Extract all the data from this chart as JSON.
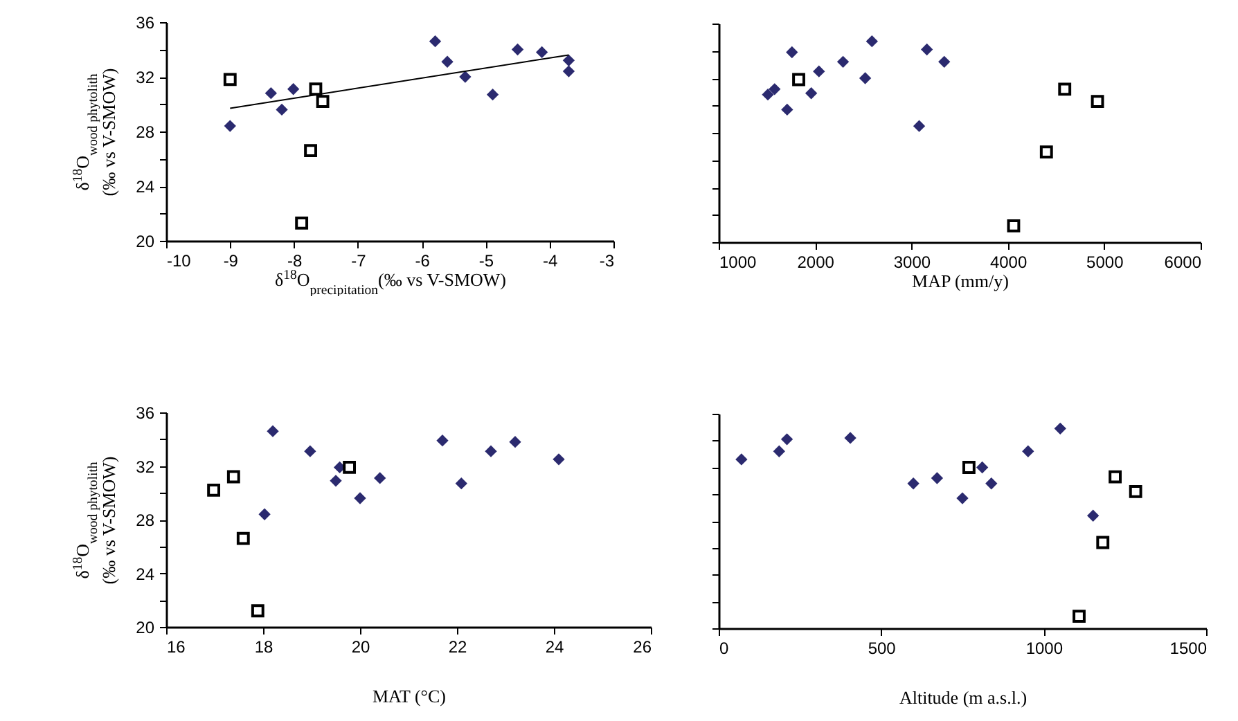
{
  "chart_data": [
    {
      "type": "scatter",
      "xlabel": "δ$^{18}$O$_{precipitation}$(‰ vs V-SMOW)",
      "ylabel": "δ$^{18}$O$_{wood phytolith}$\n(‰ vs V-SMOW)",
      "xlim": [
        -10,
        -3
      ],
      "xticks": [
        -10,
        -9,
        -8,
        -7,
        -6,
        -5,
        -4,
        -3
      ],
      "ylim": [
        20,
        36
      ],
      "yticks": [
        20,
        {
          "value": 22,
          "label": null
        },
        24,
        {
          "value": 26,
          "label": null
        },
        28,
        {
          "value": 30,
          "label": null
        },
        32,
        {
          "value": 34,
          "label": null
        },
        36
      ],
      "grid": false,
      "series": [
        {
          "color": "#2b2a6f",
          "marker": "diamond",
          "x": [
            -9.0,
            -8.36,
            -8.19,
            -8.01,
            -5.79,
            -5.6,
            -5.32,
            -4.89,
            -4.5,
            -4.12,
            -3.7,
            -3.7
          ],
          "values": [
            28.4,
            30.8,
            29.6,
            31.1,
            34.6,
            33.1,
            32.0,
            30.7,
            34.0,
            33.8,
            33.2,
            32.4
          ]
        },
        {
          "color": "#000000",
          "marker": "square",
          "x": [
            -9.0,
            -7.66,
            -7.55,
            -7.74,
            -7.88
          ],
          "values": [
            31.8,
            31.1,
            30.2,
            26.6,
            21.3
          ]
        },
        {
          "type": "line",
          "color": "#000000",
          "x": [
            -9.0,
            -3.7
          ],
          "values": [
            29.7,
            33.6
          ]
        }
      ]
    },
    {
      "type": "scatter",
      "xlabel": "MAP (mm/y)",
      "xlim": [
        1000,
        6000
      ],
      "xticks": [
        1000,
        2000,
        3000,
        4000,
        5000,
        6000
      ],
      "ylim": [
        20,
        36
      ],
      "yticks": [
        20,
        {
          "value": 22,
          "label": null
        },
        24,
        {
          "value": 26,
          "label": null
        },
        28,
        {
          "value": 30,
          "label": null
        },
        32,
        {
          "value": 34,
          "label": null
        },
        36
      ],
      "tick_labels": "x",
      "grid": false,
      "series": [
        {
          "color": "#2b2a6f",
          "marker": "diamond",
          "x": [
            1510,
            1580,
            1710,
            1760,
            1960,
            2040,
            2290,
            2520,
            2590,
            3080,
            3160,
            3340
          ],
          "values": [
            30.8,
            31.2,
            29.7,
            33.9,
            30.9,
            32.5,
            33.2,
            32.0,
            34.7,
            28.5,
            34.1,
            33.2
          ]
        },
        {
          "color": "#000000",
          "marker": "square",
          "x": [
            1830,
            4590,
            4930,
            4400,
            4060
          ],
          "values": [
            31.9,
            31.2,
            30.3,
            26.6,
            21.2
          ]
        }
      ]
    },
    {
      "type": "scatter",
      "xlabel": "MAT (°C)",
      "ylabel": "δ$^{18}$O$_{wood phytolith}$\n(‰ vs V-SMOW)",
      "xlim": [
        16,
        26
      ],
      "xticks": [
        16,
        18,
        20,
        22,
        24,
        26
      ],
      "ylim": [
        20,
        36
      ],
      "yticks": [
        20,
        {
          "value": 22,
          "label": null
        },
        24,
        {
          "value": 26,
          "label": null
        },
        28,
        {
          "value": 30,
          "label": null
        },
        32,
        {
          "value": 34,
          "label": null
        },
        36
      ],
      "grid": false,
      "series": [
        {
          "color": "#2b2a6f",
          "marker": "diamond",
          "x": [
            18.03,
            18.2,
            18.97,
            19.5,
            19.58,
            20.0,
            20.41,
            21.7,
            22.09,
            22.7,
            23.2,
            24.1
          ],
          "values": [
            28.4,
            34.6,
            33.1,
            30.9,
            31.9,
            29.6,
            31.1,
            33.9,
            30.7,
            33.1,
            33.8,
            32.5
          ]
        },
        {
          "color": "#000000",
          "marker": "square",
          "x": [
            16.98,
            17.39,
            17.59,
            17.89,
            19.78
          ],
          "values": [
            30.2,
            31.2,
            26.6,
            21.2,
            31.9
          ]
        }
      ]
    },
    {
      "type": "scatter",
      "xlabel": "Altitude (m a.s.l.)",
      "xlim": [
        0,
        1500
      ],
      "xticks": [
        0,
        500,
        1000,
        1500
      ],
      "ylim": [
        20,
        36
      ],
      "yticks": [
        20,
        {
          "value": 22,
          "label": null
        },
        24,
        {
          "value": 26,
          "label": null
        },
        28,
        {
          "value": 30,
          "label": null
        },
        32,
        {
          "value": 34,
          "label": null
        },
        36
      ],
      "tick_labels": "x",
      "grid": false,
      "series": [
        {
          "color": "#2b2a6f",
          "marker": "diamond",
          "x": [
            70,
            186,
            210,
            405,
            599,
            672,
            750,
            811,
            839,
            952,
            1051,
            1152
          ],
          "values": [
            32.6,
            33.2,
            34.1,
            34.2,
            30.8,
            31.2,
            29.7,
            32.0,
            30.8,
            33.2,
            34.9,
            28.4
          ]
        },
        {
          "color": "#000000",
          "marker": "square",
          "x": [
            770,
            1220,
            1283,
            1182,
            1109
          ],
          "values": [
            32.0,
            31.3,
            30.2,
            26.4,
            20.9
          ]
        }
      ]
    }
  ]
}
